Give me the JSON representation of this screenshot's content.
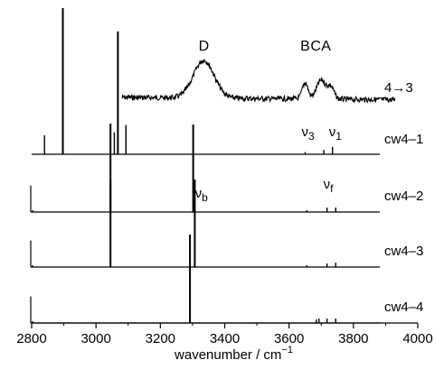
{
  "chart_data": {
    "type": "line",
    "xlabel": "wavenumber / cm",
    "xlabel_sup": "−1",
    "xlim": [
      2800,
      4000
    ],
    "x_ticks": [
      2800,
      3000,
      3200,
      3400,
      3600,
      3800,
      4000
    ],
    "x_tick_labels": [
      "2800",
      "3000",
      "3200",
      "3400",
      "3600",
      "3800",
      "4000"
    ],
    "grid": false,
    "experimental": {
      "label": "4→3",
      "peaks": [
        {
          "label": "D",
          "x": 3335
        },
        {
          "label": "B",
          "x": 3650
        },
        {
          "label": "C",
          "x": 3683
        },
        {
          "label": "A",
          "x": 3715
        }
      ]
    },
    "panels": [
      {
        "label": "cw4–1",
        "sticks": [
          {
            "x": 2840,
            "h": 0.13
          },
          {
            "x": 2897,
            "h": 1.0
          },
          {
            "x": 3057,
            "h": 0.15
          },
          {
            "x": 3068,
            "h": 0.84
          },
          {
            "x": 3093,
            "h": 0.2
          },
          {
            "x": 3650,
            "h": 0.015
          },
          {
            "x": 3708,
            "h": 0.03
          },
          {
            "x": 3735,
            "h": 0.05
          }
        ],
        "annotations": [
          {
            "text": "ν",
            "sub": "3",
            "x": 3650
          },
          {
            "text": "ν",
            "sub": "1",
            "x": 3735
          }
        ]
      },
      {
        "label": "cw4–2",
        "sticks": [
          {
            "x": 2803,
            "h": 0.02
          },
          {
            "x": 3045,
            "h": 1.0
          },
          {
            "x": 3302,
            "h": 0.99
          },
          {
            "x": 3655,
            "h": 0.02
          },
          {
            "x": 3718,
            "h": 0.05
          },
          {
            "x": 3745,
            "h": 0.05
          }
        ],
        "annotations": [
          {
            "text": "ν",
            "sub": "b",
            "x": 3302
          },
          {
            "text": "ν",
            "sub": "f",
            "x": 3718
          }
        ]
      },
      {
        "label": "cw4–3",
        "sticks": [
          {
            "x": 2803,
            "h": 0.02
          },
          {
            "x": 3045,
            "h": 1.0
          },
          {
            "x": 3307,
            "h": 0.99
          },
          {
            "x": 3655,
            "h": 0.02
          },
          {
            "x": 3718,
            "h": 0.04
          },
          {
            "x": 3745,
            "h": 0.05
          }
        ],
        "annotations": []
      },
      {
        "label": "cw4–4",
        "sticks": [
          {
            "x": 2803,
            "h": 0.02
          },
          {
            "x": 3292,
            "h": 1.0
          },
          {
            "x": 3685,
            "h": 0.04
          },
          {
            "x": 3693,
            "h": 0.05
          },
          {
            "x": 3718,
            "h": 0.05
          },
          {
            "x": 3745,
            "h": 0.05
          }
        ],
        "annotations": []
      }
    ]
  }
}
